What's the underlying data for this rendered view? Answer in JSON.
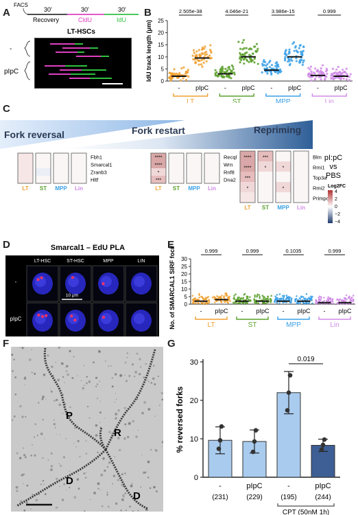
{
  "figure": {
    "panel_labels": [
      "A",
      "B",
      "C",
      "D",
      "E",
      "F",
      "G"
    ],
    "colors": {
      "LT": "#f0a030",
      "ST": "#5aa02c",
      "MPP": "#39a0e6",
      "Lin": "#d08ae6",
      "ctrl": "#999999",
      "magenta": "#e040c0",
      "green": "#30c040",
      "heat_pos": "#b03030",
      "heat_neg": "#1f3b6e",
      "bar_fill": "#a9cbee"
    }
  },
  "panelA": {
    "facs_label": "FACS",
    "steps": [
      {
        "time": "30'",
        "label": "Recovery"
      },
      {
        "time": "30'",
        "label": "CldU"
      },
      {
        "time": "30'",
        "label": "IdU"
      }
    ],
    "title": "LT-HSCs",
    "row_labels": [
      "-",
      "pIpC"
    ]
  },
  "panelC": {
    "gradient_labels": [
      "Fork reversal",
      "Fork restart",
      "Repriming"
    ],
    "legend_title": "pI:pC\nvs\nPBS",
    "legend_label": "Log2FC",
    "legend_ticks": [
      "4",
      "2",
      "0",
      "−2",
      "−4"
    ],
    "column_labels": [
      "LT",
      "ST",
      "MPP",
      "Lin"
    ],
    "groups": [
      {
        "genes": [
          "Fbh1",
          "Smarcal1",
          "Zranb3",
          "Hltf"
        ],
        "stars": [
          [
            "",
            "",
            "",
            ""
          ],
          [
            "",
            "",
            "",
            ""
          ],
          [
            "",
            "",
            "",
            ""
          ],
          [
            "",
            "",
            "",
            ""
          ]
        ]
      },
      {
        "genes": [
          "Recql",
          "Wrn",
          "Rnf8",
          "Dna2"
        ],
        "stars": [
          [
            "****",
            "",
            "",
            ""
          ],
          [
            "****",
            "",
            "",
            ""
          ],
          [
            "*",
            "",
            "",
            ""
          ],
          [
            "***",
            "",
            "",
            ""
          ]
        ]
      },
      {
        "genes": [
          "Blm",
          "Rmi1",
          "Top3a",
          "Rmi2",
          "Primpol"
        ],
        "stars": [
          [
            "****",
            "***",
            "",
            ""
          ],
          [
            "****",
            "*",
            "*",
            ""
          ],
          [
            "***",
            "",
            "",
            ""
          ],
          [
            "*",
            "",
            "*",
            ""
          ],
          [
            "",
            "",
            "",
            ""
          ]
        ]
      }
    ]
  },
  "panelD": {
    "title": "Smarcal1 – EdU PLA",
    "columns": [
      "LT-HSC",
      "ST-HSC",
      "MPP",
      "LIN"
    ],
    "rows": [
      "-",
      "pIpC"
    ],
    "scale": "10 μm"
  },
  "panelF": {
    "labels": [
      "P",
      "R",
      "D",
      "D"
    ]
  },
  "chart_data": [
    {
      "panel": "B",
      "type": "scatter",
      "ylabel": "IdU track length (μm)",
      "ylim": [
        0,
        25
      ],
      "yticks": [
        0,
        5,
        10,
        15,
        20,
        25
      ],
      "tick_labels": [
        "-",
        "pIpC",
        "-",
        "pIpC",
        "-",
        "pIpC",
        "-",
        "pIpC"
      ],
      "groups": [
        "LT",
        "ST",
        "MPP",
        "Lin"
      ],
      "pvalues": [
        "2.505e-38",
        "4.046e-21",
        "3.986e-15",
        "0.999"
      ],
      "series": [
        {
          "group": "LT",
          "treatment": "-",
          "median": 2
        },
        {
          "group": "LT",
          "treatment": "pIpC",
          "median": 9.5
        },
        {
          "group": "ST",
          "treatment": "-",
          "median": 3
        },
        {
          "group": "ST",
          "treatment": "pIpC",
          "median": 10
        },
        {
          "group": "MPP",
          "treatment": "-",
          "median": 4.5
        },
        {
          "group": "MPP",
          "treatment": "pIpC",
          "median": 10
        },
        {
          "group": "Lin",
          "treatment": "-",
          "median": 2.3
        },
        {
          "group": "Lin",
          "treatment": "pIpC",
          "median": 2
        }
      ]
    },
    {
      "panel": "E",
      "type": "scatter",
      "ylabel": "No. of SMARCAL1 SIRF foci/ cell",
      "ylim": [
        0,
        30
      ],
      "yticks": [
        0,
        5,
        10,
        15,
        20,
        25,
        30
      ],
      "tick_labels": [
        "-",
        "pIpC",
        "-",
        "pIpC",
        "-",
        "pIpC",
        "-",
        "pIpC"
      ],
      "groups": [
        "LT",
        "ST",
        "MPP",
        "Lin"
      ],
      "pvalues": [
        "0.999",
        "0.999",
        "0.1035",
        "0.999"
      ],
      "series": [
        {
          "group": "LT",
          "treatment": "-",
          "median": 2
        },
        {
          "group": "LT",
          "treatment": "pIpC",
          "median": 3
        },
        {
          "group": "ST",
          "treatment": "-",
          "median": 2
        },
        {
          "group": "ST",
          "treatment": "pIpC",
          "median": 2
        },
        {
          "group": "MPP",
          "treatment": "-",
          "median": 2
        },
        {
          "group": "MPP",
          "treatment": "pIpC",
          "median": 2
        },
        {
          "group": "Lin",
          "treatment": "-",
          "median": 1
        },
        {
          "group": "Lin",
          "treatment": "pIpC",
          "median": 1
        }
      ]
    },
    {
      "panel": "G",
      "type": "bar",
      "ylabel": "% reversed forks",
      "ylim": [
        0,
        30
      ],
      "yticks": [
        0,
        10,
        20,
        30
      ],
      "categories": [
        "-",
        "pIpC",
        "-",
        "pIpC"
      ],
      "counts": [
        "(231)",
        "(229)",
        "(195)",
        "(244)"
      ],
      "values": [
        9.6,
        9.3,
        22,
        8.3
      ],
      "errors": [
        3.5,
        3.0,
        5.5,
        1.6
      ],
      "points": [
        [
          7.4,
          9.6,
          13.2
        ],
        [
          6.6,
          9.3,
          12.2
        ],
        [
          17.4,
          22,
          26.5
        ],
        [
          7.2,
          8.4,
          9.8
        ]
      ],
      "pvalue": "0.019",
      "group_label": "CPT (50nM 1h)"
    }
  ]
}
